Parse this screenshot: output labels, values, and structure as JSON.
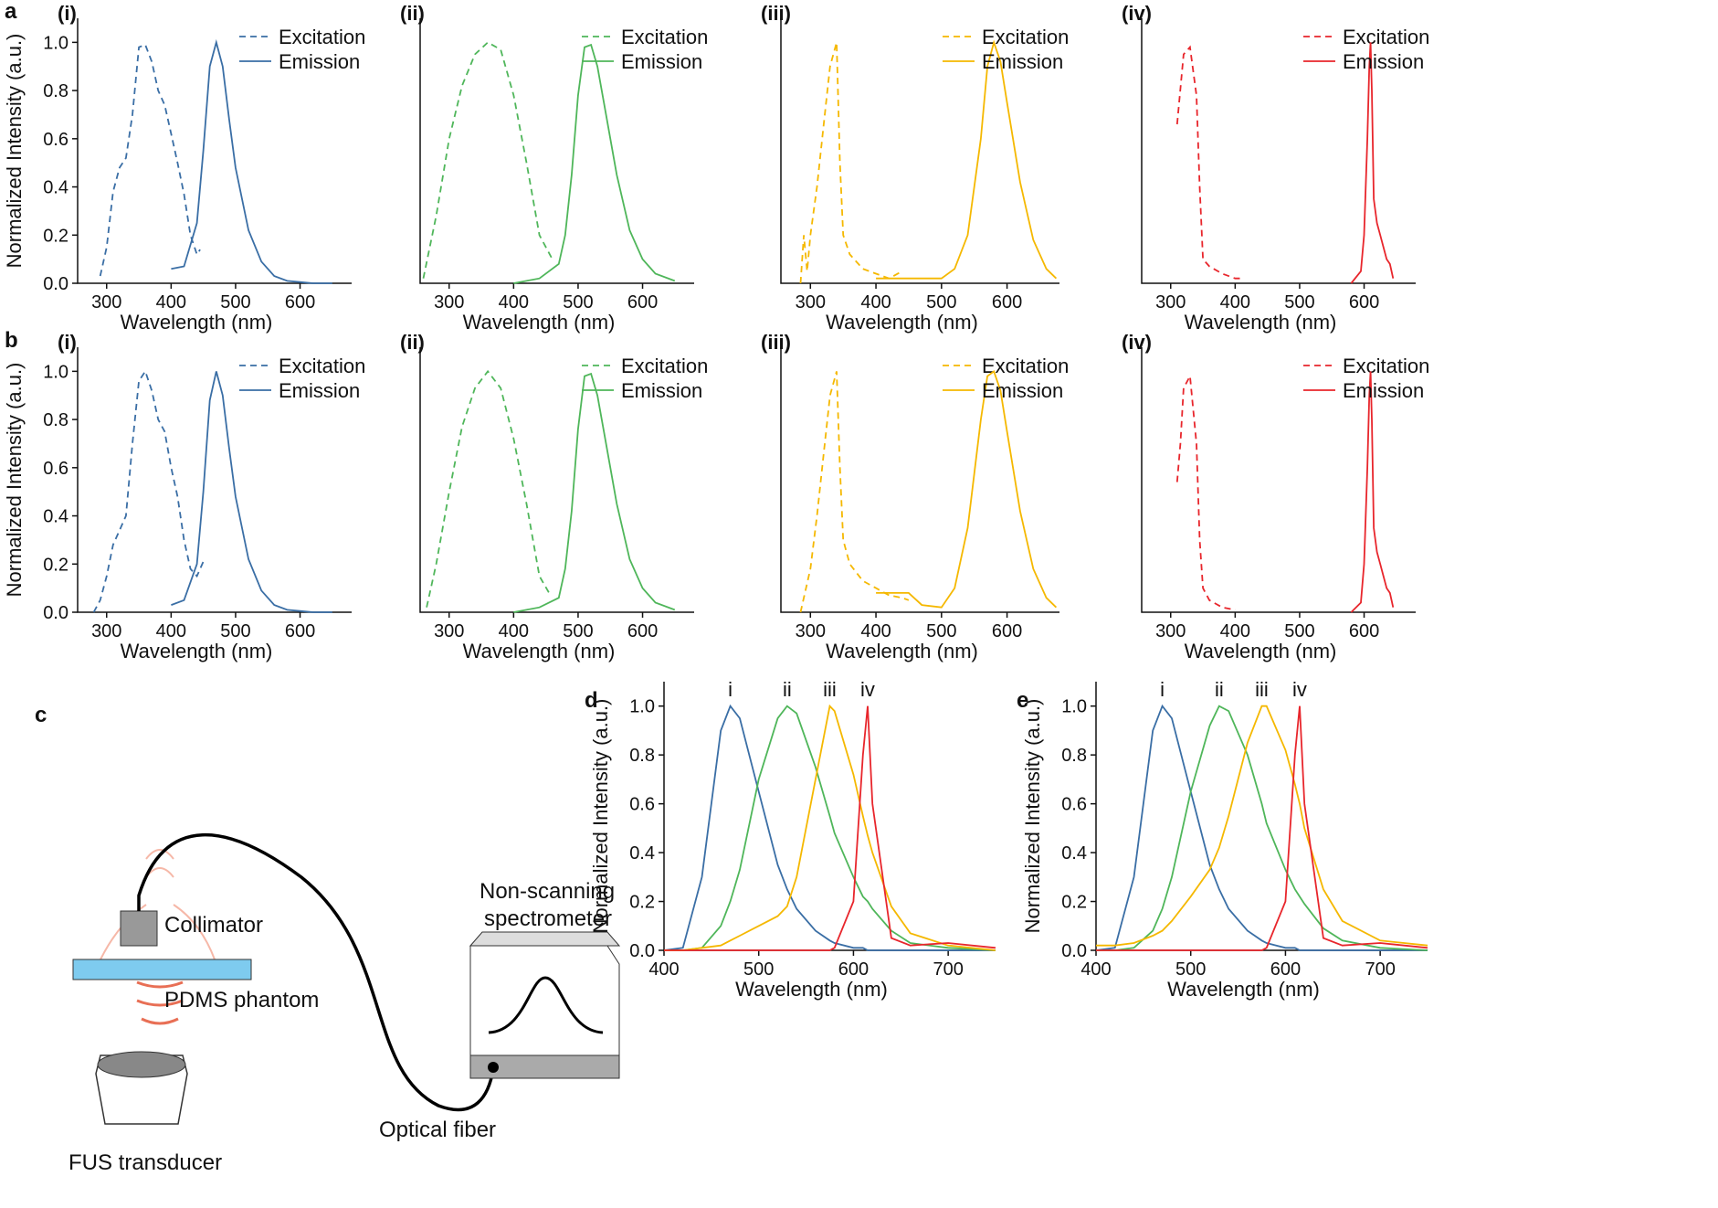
{
  "chart_data": [
    {
      "type": "line",
      "panel": "a",
      "title": "(i)",
      "xlabel": "Wavelength (nm)",
      "ylabel": "Normalized Intensity (a.u.)",
      "xlim": [
        255,
        680
      ],
      "ylim": [
        0,
        1.1
      ],
      "xticks": [
        300,
        400,
        500,
        600
      ],
      "yticks": [
        {
          "value": 0,
          "label": "0.0"
        },
        0.2,
        0.4,
        0.6,
        0.8,
        {
          "value": 1,
          "label": "1.0"
        }
      ],
      "series": [
        {
          "name": "Excitation",
          "color": "#3a6ea5",
          "style": "dashed",
          "x": [
            290,
            300,
            310,
            320,
            330,
            340,
            350,
            360,
            370,
            380,
            390,
            400,
            410,
            420,
            430,
            440,
            445
          ],
          "values": [
            0.03,
            0.15,
            0.38,
            0.48,
            0.52,
            0.7,
            0.98,
            0.99,
            0.92,
            0.8,
            0.74,
            0.62,
            0.5,
            0.37,
            0.2,
            0.12,
            0.14
          ]
        },
        {
          "name": "Emission",
          "color": "#3a6ea5",
          "style": "solid",
          "x": [
            400,
            420,
            440,
            450,
            460,
            470,
            480,
            490,
            500,
            520,
            540,
            560,
            580,
            600,
            620,
            650
          ],
          "values": [
            0.06,
            0.07,
            0.25,
            0.55,
            0.9,
            1.0,
            0.9,
            0.68,
            0.48,
            0.22,
            0.09,
            0.03,
            0.01,
            0.005,
            0,
            0
          ]
        }
      ]
    },
    {
      "type": "line",
      "title": "(ii)",
      "xlabel": "Wavelength (nm)",
      "xlim": [
        255,
        680
      ],
      "ylim": [
        0,
        1.1
      ],
      "xticks": [
        300,
        400,
        500,
        600
      ],
      "series": [
        {
          "name": "Excitation",
          "color": "#4fb65a",
          "style": "dashed",
          "x": [
            260,
            280,
            300,
            320,
            340,
            360,
            380,
            400,
            420,
            440,
            460
          ],
          "values": [
            0.02,
            0.28,
            0.6,
            0.82,
            0.95,
            1.0,
            0.97,
            0.78,
            0.5,
            0.2,
            0.1
          ]
        },
        {
          "name": "Emission",
          "color": "#4fb65a",
          "style": "solid",
          "x": [
            400,
            440,
            470,
            480,
            490,
            500,
            510,
            520,
            530,
            540,
            560,
            580,
            600,
            620,
            650
          ],
          "values": [
            0,
            0.02,
            0.08,
            0.2,
            0.45,
            0.78,
            0.98,
            0.99,
            0.9,
            0.75,
            0.45,
            0.22,
            0.1,
            0.04,
            0.01
          ]
        }
      ]
    },
    {
      "type": "line",
      "title": "(iii)",
      "xlabel": "Wavelength (nm)",
      "xlim": [
        255,
        680
      ],
      "ylim": [
        0,
        1.1
      ],
      "xticks": [
        300,
        400,
        500,
        600
      ],
      "series": [
        {
          "name": "Excitation",
          "color": "#f5b800",
          "style": "dashed",
          "x": [
            285,
            290,
            295,
            300,
            310,
            320,
            330,
            340,
            345,
            350,
            360,
            380,
            400,
            420,
            440
          ],
          "values": [
            0,
            0.2,
            0.05,
            0.2,
            0.4,
            0.65,
            0.9,
            1.0,
            0.5,
            0.2,
            0.12,
            0.06,
            0.04,
            0.02,
            0.05
          ]
        },
        {
          "name": "Emission",
          "color": "#f5b800",
          "style": "solid",
          "x": [
            400,
            450,
            500,
            520,
            540,
            560,
            570,
            580,
            590,
            600,
            620,
            640,
            660,
            675
          ],
          "values": [
            0.02,
            0.02,
            0.02,
            0.06,
            0.2,
            0.6,
            0.9,
            1.0,
            0.92,
            0.75,
            0.42,
            0.18,
            0.06,
            0.02
          ]
        }
      ]
    },
    {
      "type": "line",
      "title": "(iv)",
      "xlabel": "Wavelength (nm)",
      "xlim": [
        255,
        680
      ],
      "ylim": [
        0,
        1.1
      ],
      "xticks": [
        300,
        400,
        500,
        600
      ],
      "series": [
        {
          "name": "Excitation",
          "color": "#e8262c",
          "style": "dashed",
          "x": [
            310,
            320,
            330,
            340,
            345,
            350,
            360,
            380,
            400,
            410
          ],
          "values": [
            0.66,
            0.95,
            0.98,
            0.78,
            0.4,
            0.1,
            0.07,
            0.04,
            0.02,
            0.02
          ]
        },
        {
          "name": "Emission",
          "color": "#e8262c",
          "style": "solid",
          "x": [
            580,
            595,
            600,
            605,
            608,
            610,
            612,
            615,
            620,
            625,
            630,
            635,
            640,
            645
          ],
          "values": [
            0,
            0.05,
            0.2,
            0.6,
            0.9,
            1.0,
            0.8,
            0.35,
            0.25,
            0.2,
            0.15,
            0.1,
            0.08,
            0.02
          ]
        }
      ]
    },
    {
      "type": "line",
      "panel": "b",
      "title": "(i)",
      "xlabel": "Wavelength (nm)",
      "ylabel": "Normalized Intensity (a.u.)",
      "xlim": [
        255,
        680
      ],
      "ylim": [
        0,
        1.1
      ],
      "xticks": [
        300,
        400,
        500,
        600
      ],
      "yticks": [
        {
          "value": 0,
          "label": "0.0"
        },
        0.2,
        0.4,
        0.6,
        0.8,
        {
          "value": 1,
          "label": "1.0"
        }
      ],
      "series": [
        {
          "name": "Excitation",
          "color": "#3a6ea5",
          "style": "dashed",
          "x": [
            280,
            290,
            300,
            310,
            320,
            330,
            340,
            350,
            360,
            370,
            380,
            390,
            400,
            410,
            420,
            430,
            440,
            450
          ],
          "values": [
            0,
            0.05,
            0.15,
            0.28,
            0.34,
            0.4,
            0.7,
            0.96,
            1.0,
            0.92,
            0.8,
            0.75,
            0.6,
            0.48,
            0.3,
            0.18,
            0.15,
            0.21
          ]
        },
        {
          "name": "Emission",
          "color": "#3a6ea5",
          "style": "solid",
          "x": [
            400,
            420,
            440,
            450,
            460,
            470,
            480,
            490,
            500,
            520,
            540,
            560,
            580,
            600,
            620,
            650
          ],
          "values": [
            0.03,
            0.05,
            0.2,
            0.5,
            0.88,
            1.0,
            0.9,
            0.68,
            0.48,
            0.22,
            0.09,
            0.03,
            0.01,
            0.005,
            0,
            0
          ]
        }
      ]
    },
    {
      "type": "line",
      "title": "(ii)",
      "xlabel": "Wavelength (nm)",
      "xlim": [
        255,
        680
      ],
      "ylim": [
        0,
        1.1
      ],
      "xticks": [
        300,
        400,
        500,
        600
      ],
      "series": [
        {
          "name": "Excitation",
          "color": "#4fb65a",
          "style": "dashed",
          "x": [
            265,
            280,
            300,
            320,
            340,
            360,
            380,
            400,
            420,
            440,
            455
          ],
          "values": [
            0.02,
            0.2,
            0.5,
            0.77,
            0.93,
            1.0,
            0.93,
            0.72,
            0.45,
            0.15,
            0.08
          ]
        },
        {
          "name": "Emission",
          "color": "#4fb65a",
          "style": "solid",
          "x": [
            400,
            440,
            470,
            480,
            490,
            500,
            510,
            520,
            530,
            540,
            560,
            580,
            600,
            620,
            650
          ],
          "values": [
            0,
            0.02,
            0.06,
            0.18,
            0.42,
            0.76,
            0.98,
            0.99,
            0.9,
            0.75,
            0.45,
            0.22,
            0.1,
            0.04,
            0.01
          ]
        }
      ]
    },
    {
      "type": "line",
      "title": "(iii)",
      "xlabel": "Wavelength (nm)",
      "xlim": [
        255,
        680
      ],
      "ylim": [
        0,
        1.1
      ],
      "xticks": [
        300,
        400,
        500,
        600
      ],
      "series": [
        {
          "name": "Excitation",
          "color": "#f5b800",
          "style": "dashed",
          "x": [
            285,
            300,
            310,
            320,
            330,
            340,
            345,
            350,
            360,
            380,
            400,
            420,
            440,
            450
          ],
          "values": [
            0,
            0.18,
            0.4,
            0.65,
            0.9,
            1.0,
            0.6,
            0.3,
            0.2,
            0.13,
            0.1,
            0.07,
            0.06,
            0.05
          ]
        },
        {
          "name": "Emission",
          "color": "#f5b800",
          "style": "solid",
          "x": [
            400,
            450,
            470,
            500,
            520,
            540,
            560,
            570,
            580,
            590,
            600,
            620,
            640,
            660,
            675
          ],
          "values": [
            0.08,
            0.08,
            0.03,
            0.02,
            0.1,
            0.35,
            0.8,
            0.98,
            1.0,
            0.92,
            0.75,
            0.42,
            0.18,
            0.06,
            0.02
          ]
        }
      ]
    },
    {
      "type": "line",
      "title": "(iv)",
      "xlabel": "Wavelength (nm)",
      "xlim": [
        255,
        680
      ],
      "ylim": [
        0,
        1.1
      ],
      "xticks": [
        300,
        400,
        500,
        600
      ],
      "series": [
        {
          "name": "Excitation",
          "color": "#e8262c",
          "style": "dashed",
          "x": [
            310,
            315,
            320,
            330,
            340,
            345,
            350,
            360,
            380,
            400
          ],
          "values": [
            0.54,
            0.7,
            0.93,
            0.98,
            0.7,
            0.3,
            0.1,
            0.05,
            0.02,
            0.01
          ]
        },
        {
          "name": "Emission",
          "color": "#e8262c",
          "style": "solid",
          "x": [
            580,
            595,
            600,
            605,
            608,
            610,
            612,
            615,
            620,
            625,
            630,
            635,
            640,
            645
          ],
          "values": [
            0,
            0.04,
            0.2,
            0.6,
            0.9,
            1.0,
            0.8,
            0.35,
            0.25,
            0.2,
            0.15,
            0.1,
            0.08,
            0.02
          ]
        }
      ]
    },
    {
      "type": "line",
      "panel": "d",
      "xlabel": "Wavelength (nm)",
      "ylabel": "Normalized Intensity (a.u.)",
      "xlim": [
        400,
        750
      ],
      "ylim": [
        0,
        1.1
      ],
      "xticks": [
        400,
        500,
        600,
        700
      ],
      "yticks": [
        {
          "value": 0,
          "label": "0.0"
        },
        0.2,
        0.4,
        0.6,
        0.8,
        {
          "value": 1,
          "label": "1.0"
        }
      ],
      "x": [
        400,
        420,
        440,
        460,
        470,
        480,
        500,
        520,
        530,
        540,
        560,
        575,
        580,
        600,
        610,
        615,
        620,
        640,
        660,
        700,
        750
      ],
      "series": [
        {
          "name": "i",
          "color": "#3a6ea5",
          "values": [
            0,
            0.01,
            0.3,
            0.9,
            1.0,
            0.95,
            0.65,
            0.35,
            0.25,
            0.17,
            0.08,
            0.04,
            0.03,
            0.01,
            0.01,
            0,
            0,
            0,
            0,
            0,
            0
          ]
        },
        {
          "name": "ii",
          "color": "#4fb65a",
          "values": [
            0,
            0,
            0.01,
            0.1,
            0.2,
            0.33,
            0.7,
            0.95,
            1.0,
            0.97,
            0.75,
            0.55,
            0.48,
            0.3,
            0.22,
            0.2,
            0.17,
            0.08,
            0.03,
            0.01,
            0
          ]
        },
        {
          "name": "iii",
          "color": "#f5b800",
          "values": [
            0,
            0,
            0.01,
            0.02,
            0.04,
            0.06,
            0.1,
            0.14,
            0.18,
            0.3,
            0.7,
            1.0,
            0.98,
            0.72,
            0.55,
            0.47,
            0.4,
            0.18,
            0.07,
            0.02,
            0
          ]
        },
        {
          "name": "iv",
          "color": "#e8262c",
          "values": [
            0,
            0,
            0,
            0,
            0,
            0,
            0,
            0,
            0,
            0,
            0,
            0,
            0.01,
            0.2,
            0.8,
            1.0,
            0.6,
            0.05,
            0.02,
            0.03,
            0.01
          ]
        }
      ]
    },
    {
      "type": "line",
      "panel": "e",
      "xlabel": "Wavelength (nm)",
      "ylabel": "Normalized Intensity (a.u.)",
      "xlim": [
        400,
        750
      ],
      "ylim": [
        0,
        1.1
      ],
      "xticks": [
        400,
        500,
        600,
        700
      ],
      "yticks": [
        {
          "value": 0,
          "label": "0.0"
        },
        0.2,
        0.4,
        0.6,
        0.8,
        {
          "value": 1,
          "label": "1.0"
        }
      ],
      "x": [
        400,
        420,
        440,
        460,
        470,
        480,
        500,
        520,
        530,
        540,
        560,
        575,
        580,
        600,
        610,
        615,
        620,
        640,
        660,
        700,
        750
      ],
      "series": [
        {
          "name": "i",
          "color": "#3a6ea5",
          "values": [
            0,
            0.01,
            0.3,
            0.9,
            1.0,
            0.95,
            0.65,
            0.35,
            0.25,
            0.17,
            0.08,
            0.04,
            0.03,
            0.01,
            0.01,
            0,
            0,
            0,
            0,
            0,
            0
          ]
        },
        {
          "name": "ii",
          "color": "#4fb65a",
          "values": [
            0,
            0,
            0.01,
            0.08,
            0.17,
            0.3,
            0.65,
            0.92,
            1.0,
            0.98,
            0.8,
            0.6,
            0.52,
            0.33,
            0.25,
            0.22,
            0.19,
            0.09,
            0.04,
            0.01,
            0
          ]
        },
        {
          "name": "iii",
          "color": "#f5b800",
          "values": [
            0.02,
            0.02,
            0.03,
            0.06,
            0.08,
            0.12,
            0.22,
            0.33,
            0.42,
            0.55,
            0.85,
            1.0,
            1.0,
            0.82,
            0.68,
            0.6,
            0.5,
            0.25,
            0.12,
            0.04,
            0.02
          ]
        },
        {
          "name": "iv",
          "color": "#e8262c",
          "values": [
            0,
            0,
            0,
            0,
            0,
            0,
            0,
            0,
            0,
            0,
            0,
            0,
            0.01,
            0.2,
            0.8,
            1.0,
            0.6,
            0.05,
            0.02,
            0.03,
            0.01
          ]
        }
      ]
    }
  ],
  "diagram": {
    "panel": "c",
    "labels": [
      "Collimator",
      "PDMS phantom",
      "FUS transducer",
      "Optical fiber",
      "Non-scanning",
      "spectrometer"
    ]
  }
}
